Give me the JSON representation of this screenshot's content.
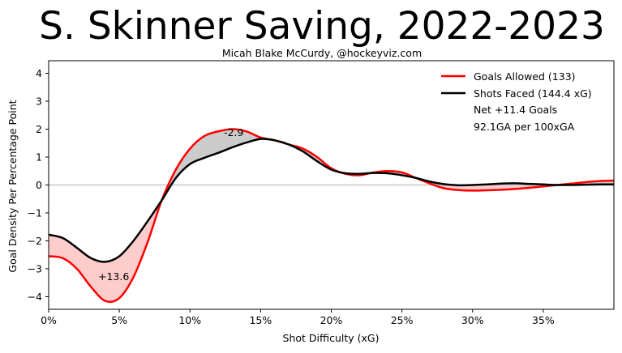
{
  "chart_data": {
    "type": "line",
    "title": "S. Skinner Saving, 2022-2023",
    "subtitle": "Micah Blake McCurdy, @hockeyviz.com",
    "xlabel": "Shot Difficulty (xG)",
    "ylabel": "Goal Density Per Percentage Point",
    "xlim": [
      0,
      0.4
    ],
    "ylim": [
      -4.45,
      4.45
    ],
    "x_ticks": [
      0,
      0.05,
      0.1,
      0.15,
      0.2,
      0.25,
      0.3,
      0.35
    ],
    "x_tick_labels": [
      "0%",
      "5%",
      "10%",
      "15%",
      "20%",
      "25%",
      "30%",
      "35%"
    ],
    "y_ticks": [
      -4,
      -3,
      -2,
      -1,
      0,
      1,
      2,
      3,
      4
    ],
    "y_tick_labels": [
      "−4",
      "−3",
      "−2",
      "−1",
      "0",
      "1",
      "2",
      "3",
      "4"
    ],
    "legend_position": "top-right",
    "series": [
      {
        "name": "Goals Allowed (133)",
        "color": "#ff0000",
        "x": [
          0,
          0.01,
          0.02,
          0.03,
          0.04,
          0.05,
          0.06,
          0.07,
          0.08,
          0.09,
          0.1,
          0.11,
          0.12,
          0.13,
          0.14,
          0.15,
          0.16,
          0.17,
          0.18,
          0.19,
          0.2,
          0.21,
          0.22,
          0.23,
          0.24,
          0.25,
          0.26,
          0.27,
          0.28,
          0.29,
          0.3,
          0.31,
          0.32,
          0.33,
          0.34,
          0.35,
          0.36,
          0.37,
          0.38,
          0.39,
          0.4
        ],
        "values": [
          -2.55,
          -2.62,
          -3.0,
          -3.65,
          -4.15,
          -4.05,
          -3.3,
          -2.05,
          -0.55,
          0.55,
          1.3,
          1.75,
          1.92,
          2.0,
          1.92,
          1.7,
          1.6,
          1.45,
          1.3,
          1.0,
          0.6,
          0.4,
          0.35,
          0.45,
          0.5,
          0.45,
          0.25,
          0.05,
          -0.12,
          -0.18,
          -0.2,
          -0.19,
          -0.17,
          -0.14,
          -0.1,
          -0.05,
          0.0,
          0.05,
          0.1,
          0.14,
          0.16
        ]
      },
      {
        "name": "Shots Faced (144.4 xG)",
        "color": "#000000",
        "x": [
          0,
          0.01,
          0.02,
          0.03,
          0.04,
          0.05,
          0.06,
          0.07,
          0.08,
          0.09,
          0.1,
          0.11,
          0.12,
          0.13,
          0.14,
          0.15,
          0.16,
          0.17,
          0.18,
          0.19,
          0.2,
          0.21,
          0.22,
          0.23,
          0.24,
          0.25,
          0.26,
          0.27,
          0.28,
          0.29,
          0.3,
          0.31,
          0.32,
          0.33,
          0.34,
          0.35,
          0.36,
          0.37,
          0.38,
          0.39,
          0.4
        ],
        "values": [
          -1.78,
          -1.9,
          -2.25,
          -2.62,
          -2.75,
          -2.55,
          -2.0,
          -1.3,
          -0.55,
          0.25,
          0.75,
          0.97,
          1.15,
          1.35,
          1.52,
          1.65,
          1.6,
          1.45,
          1.2,
          0.85,
          0.55,
          0.42,
          0.4,
          0.43,
          0.42,
          0.35,
          0.25,
          0.12,
          0.03,
          -0.01,
          0.0,
          0.02,
          0.05,
          0.06,
          0.04,
          0.02,
          0.0,
          0.0,
          0.01,
          0.02,
          0.02
        ]
      }
    ],
    "annotations": [
      {
        "text": "+13.6",
        "x": 0.046,
        "y": -3.4
      },
      {
        "text": "-2.9",
        "x": 0.131,
        "y": 1.75
      }
    ],
    "legend_notes": [
      "Net +11.4 Goals",
      "92.1GA per 100xGA"
    ],
    "fill_colors": {
      "saved": "#cccccc",
      "allowed": "#ffcccc"
    },
    "zero_line_color": "#c8c8c8"
  }
}
